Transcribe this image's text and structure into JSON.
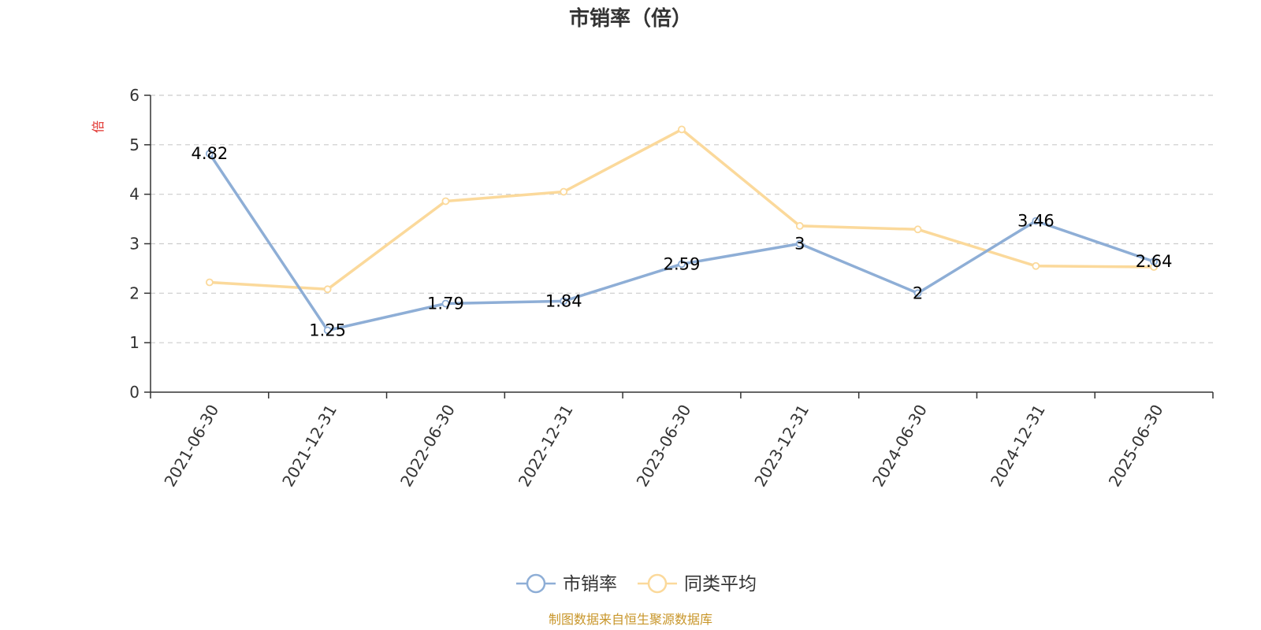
{
  "chart_data": {
    "type": "line",
    "title": "市销率（倍）",
    "ylabel": "倍",
    "categories": [
      "2021-06-30",
      "2021-12-31",
      "2022-06-30",
      "2022-12-31",
      "2023-06-30",
      "2023-12-31",
      "2024-06-30",
      "2024-12-31",
      "2025-06-30"
    ],
    "ylim": [
      0,
      6
    ],
    "yticks": [
      "0",
      "1",
      "2",
      "3",
      "4",
      "5",
      "6"
    ],
    "grid": true,
    "legend_position": "bottom-center",
    "series": [
      {
        "name": "市销率",
        "color": "#8eaed6",
        "values": [
          4.82,
          1.25,
          1.79,
          1.84,
          2.59,
          3,
          2,
          3.46,
          2.64
        ],
        "labels": [
          "4.82",
          "1.25",
          "1.79",
          "1.84",
          "2.59",
          "3",
          "2",
          "3.46",
          "2.64"
        ]
      },
      {
        "name": "同类平均",
        "color": "#fbd99b",
        "values": [
          2.22,
          2.08,
          3.86,
          4.05,
          5.31,
          3.36,
          3.29,
          2.55,
          2.53
        ]
      }
    ]
  },
  "source_note": "制图数据来自恒生聚源数据库",
  "colors": {
    "axis": "#333333",
    "grid": "#cccccc",
    "unit_label": "#e0302b",
    "source_note": "#c8962a"
  }
}
